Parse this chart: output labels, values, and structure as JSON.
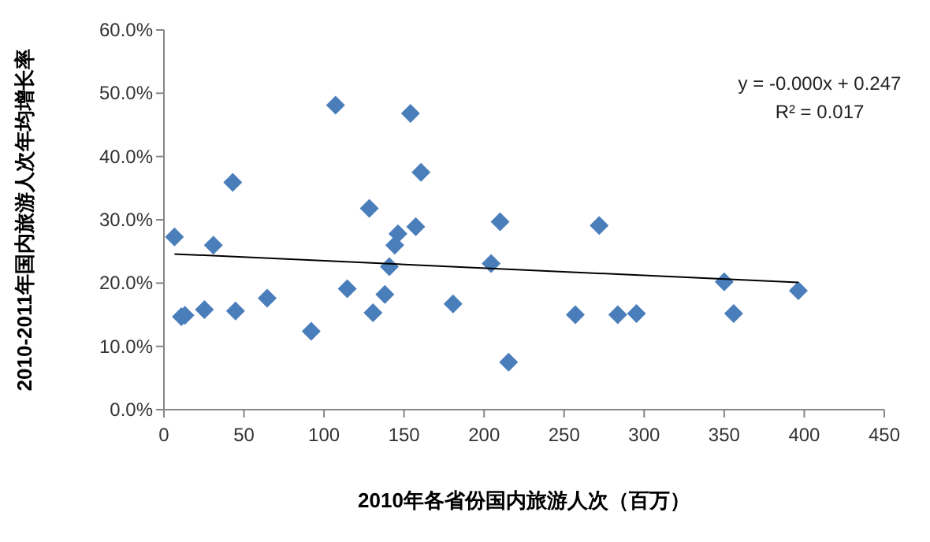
{
  "chart_data": {
    "type": "scatter",
    "xlabel": "2010年各省份国内旅游人次（百万）",
    "ylabel": "2010-2011年国内旅游人次年均增长率",
    "xlim": [
      0,
      450
    ],
    "xticks": [
      0,
      50,
      100,
      150,
      200,
      250,
      300,
      350,
      400,
      450
    ],
    "ylim": [
      0,
      60
    ],
    "yticks": [
      {
        "value": 0,
        "label": "0.0%"
      },
      {
        "value": 10,
        "label": "10.0%"
      },
      {
        "value": 20,
        "label": "20.0%"
      },
      {
        "value": 30,
        "label": "30.0%"
      },
      {
        "value": 40,
        "label": "40.0%"
      },
      {
        "value": 50,
        "label": "50.0%"
      },
      {
        "value": 60,
        "label": "60.0%"
      }
    ],
    "grid": false,
    "annotations": [
      "y = -0.000x + 0.247",
      "R² = 0.017"
    ],
    "series": [
      {
        "marker": "diamond",
        "color": "#4a7ebb",
        "x": [
          6.6,
          10.9,
          13.1,
          25.3,
          30.9,
          43,
          44.7,
          64.5,
          92,
          107.2,
          114.5,
          128.3,
          130.6,
          138,
          140.8,
          144.2,
          146.2,
          154,
          157.3,
          160.6,
          180.6,
          204.4,
          210,
          215.3,
          257,
          271.9,
          283.5,
          295.2,
          350,
          355.9,
          396.3
        ],
        "values": [
          27.3,
          14.7,
          14.9,
          15.8,
          26.0,
          35.9,
          15.6,
          17.6,
          12.4,
          48.1,
          19.1,
          31.8,
          15.3,
          18.2,
          22.6,
          26.0,
          27.8,
          46.8,
          28.9,
          37.5,
          16.7,
          23.1,
          29.7,
          7.5,
          15.0,
          29.1,
          15.0,
          15.2,
          20.2,
          15.2,
          18.8
        ]
      },
      {
        "type": "line",
        "marker": "none",
        "line_style": "solid",
        "color": "#000000",
        "x": [
          6.6,
          396.3
        ],
        "values": [
          24.6,
          20.1
        ]
      }
    ]
  }
}
